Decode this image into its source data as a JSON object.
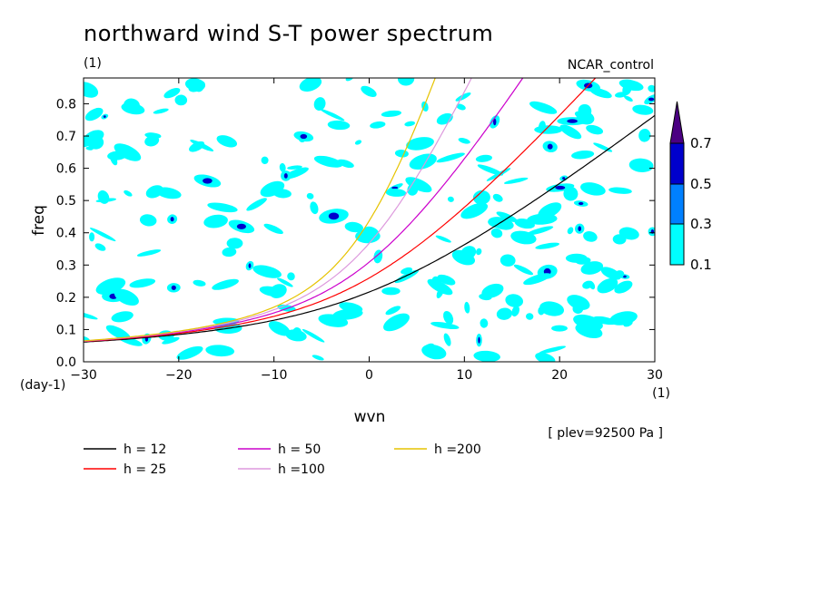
{
  "title": "northward wind S-T power spectrum",
  "units_left": "(1)",
  "run_label": "NCAR_control",
  "plev_label": "[ plev=92500 Pa ]",
  "x_units_label": "(1)",
  "y_units_label": "(day-1)",
  "chart_data": {
    "type": "contour",
    "xlabel": "wvn",
    "ylabel": "freq",
    "xlim": [
      -30,
      30
    ],
    "ylim": [
      0,
      0.88
    ],
    "xticks": [
      "-30",
      "-20",
      "-10",
      "0",
      "10",
      "20",
      "30"
    ],
    "yticks": [
      "0.0",
      "0.1",
      "0.2",
      "0.3",
      "0.4",
      "0.5",
      "0.6",
      "0.7",
      "0.8"
    ],
    "colorbar": {
      "levels": [
        "0.1",
        "0.3",
        "0.5",
        "0.7"
      ],
      "colors": [
        "#00ffff",
        "#0080ff",
        "#0000cc",
        "#4b0082"
      ]
    },
    "series": [
      {
        "name": "h = 12",
        "color": "#000000",
        "h": 12
      },
      {
        "name": "h = 25",
        "color": "#ff0000",
        "h": 25
      },
      {
        "name": "h = 50",
        "color": "#cc00cc",
        "h": 50
      },
      {
        "name": "h =100",
        "color": "#dd99dd",
        "h": 100
      },
      {
        "name": "h =200",
        "color": "#e6c300",
        "h": 200
      }
    ]
  }
}
